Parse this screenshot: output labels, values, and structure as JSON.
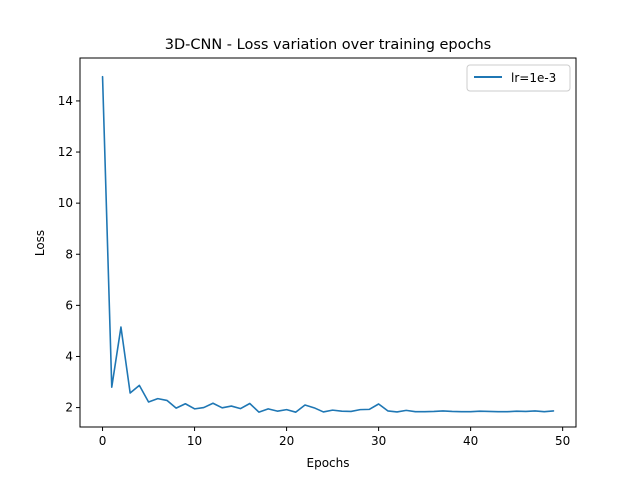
{
  "chart_data": {
    "type": "line",
    "title": "3D-CNN - Loss variation over training epochs",
    "xlabel": "Epochs",
    "ylabel": "Loss",
    "xlim": [
      -2.45,
      51.45
    ],
    "ylim": [
      1.24,
      15.68
    ],
    "x_ticks": [
      0,
      10,
      20,
      30,
      40,
      50
    ],
    "y_ticks": [
      2,
      4,
      6,
      8,
      10,
      12,
      14
    ],
    "grid": false,
    "legend": {
      "position": "top-right"
    },
    "series": [
      {
        "name": "lr=1e-3",
        "color": "#1f77b4",
        "x": [
          0,
          1,
          2,
          3,
          4,
          5,
          6,
          7,
          8,
          9,
          10,
          11,
          12,
          13,
          14,
          15,
          16,
          17,
          18,
          19,
          20,
          21,
          22,
          23,
          24,
          25,
          26,
          27,
          28,
          29,
          30,
          31,
          32,
          33,
          34,
          35,
          36,
          37,
          38,
          39,
          40,
          41,
          42,
          43,
          44,
          45,
          46,
          47,
          48,
          49
        ],
        "values": [
          14.95,
          2.8,
          5.15,
          2.57,
          2.87,
          2.22,
          2.35,
          2.28,
          1.98,
          2.15,
          1.95,
          2.0,
          2.17,
          1.99,
          2.06,
          1.96,
          2.16,
          1.82,
          1.95,
          1.86,
          1.92,
          1.82,
          2.1,
          1.99,
          1.83,
          1.9,
          1.86,
          1.85,
          1.92,
          1.93,
          2.14,
          1.87,
          1.83,
          1.89,
          1.84,
          1.84,
          1.85,
          1.87,
          1.85,
          1.84,
          1.84,
          1.86,
          1.85,
          1.84,
          1.84,
          1.86,
          1.85,
          1.87,
          1.84,
          1.87
        ]
      }
    ]
  }
}
